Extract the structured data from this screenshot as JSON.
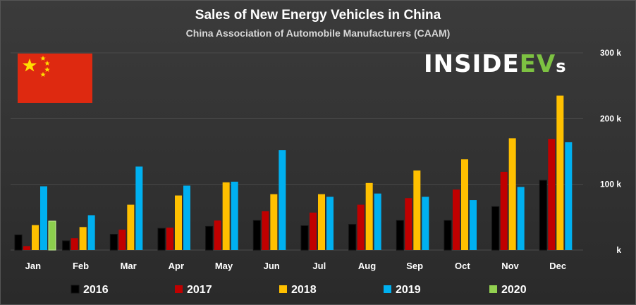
{
  "header": {
    "title": "Sales of New Energy Vehicles in China",
    "subtitle": "China Association of Automobile Manufacturers (CAAM)"
  },
  "logo": {
    "part1": "INSIDE",
    "part2": "EV",
    "part3": "s"
  },
  "colors": {
    "2016": "#000000",
    "2017": "#c00000",
    "2018": "#ffc000",
    "2019": "#00b0f0",
    "2020": "#92d050",
    "background": "#333333",
    "grid": "#4a4a4a",
    "flag_red": "#de2910",
    "flag_star": "#ffde00"
  },
  "chart_data": {
    "type": "bar",
    "title": "Sales of New Energy Vehicles in China",
    "subtitle": "China Association of Automobile Manufacturers (CAAM)",
    "xlabel": "",
    "ylabel": "",
    "ylim": [
      0,
      300000
    ],
    "yticks": [
      {
        "value": 0,
        "label": "k"
      },
      {
        "value": 100000,
        "label": "100 k"
      },
      {
        "value": 200000,
        "label": "200 k"
      },
      {
        "value": 300000,
        "label": "300 k"
      }
    ],
    "categories": [
      "Jan",
      "Feb",
      "Mar",
      "Apr",
      "May",
      "Jun",
      "Jul",
      "Aug",
      "Sep",
      "Oct",
      "Nov",
      "Dec"
    ],
    "series": [
      {
        "name": "2016",
        "values": [
          23000,
          14000,
          24000,
          33000,
          36000,
          45000,
          37000,
          39000,
          45000,
          45000,
          66000,
          106000
        ]
      },
      {
        "name": "2017",
        "values": [
          6000,
          18000,
          31000,
          34000,
          45000,
          59000,
          57000,
          69000,
          79000,
          92000,
          119000,
          169000
        ]
      },
      {
        "name": "2018",
        "values": [
          38000,
          35000,
          69000,
          83000,
          103000,
          85000,
          85000,
          102000,
          121000,
          138000,
          170000,
          235000
        ]
      },
      {
        "name": "2019",
        "values": [
          97000,
          53000,
          127000,
          98000,
          104000,
          152000,
          81000,
          86000,
          81000,
          76000,
          96000,
          164000
        ]
      },
      {
        "name": "2020",
        "values": [
          44000,
          null,
          null,
          null,
          null,
          null,
          null,
          null,
          null,
          null,
          null,
          null
        ]
      }
    ],
    "legend_position": "bottom",
    "grid": true
  }
}
